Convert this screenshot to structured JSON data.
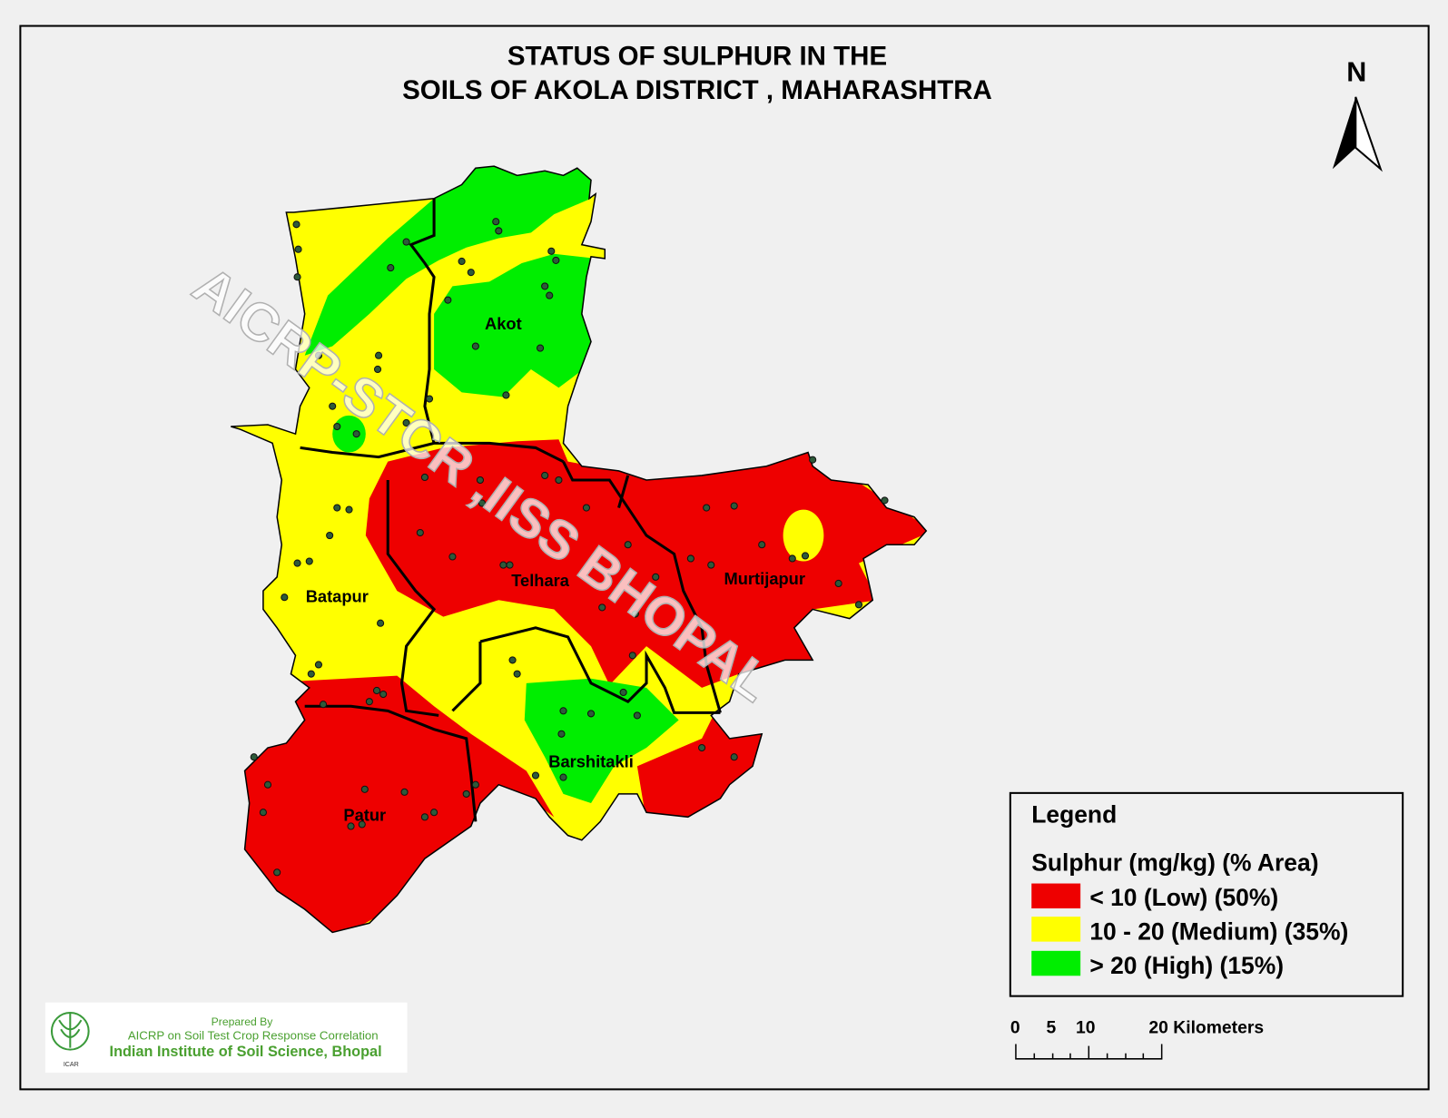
{
  "title": {
    "line1": "STATUS OF SULPHUR  IN THE",
    "line2": "SOILS OF AKOLA DISTRICT ,  MAHARASHTRA"
  },
  "north_arrow": {
    "label": "N"
  },
  "watermark": "AICRP-STCR ,IISS BHOPAL",
  "talukas": [
    {
      "name": "Akot"
    },
    {
      "name": "Telhara"
    },
    {
      "name": "Murtijapur"
    },
    {
      "name": "Batapur"
    },
    {
      "name": "Barshitakli"
    },
    {
      "name": "Patur"
    }
  ],
  "legend": {
    "heading": "Legend",
    "subtitle": "Sulphur (mg/kg) (% Area)",
    "items": [
      {
        "label": "< 10 (Low) (50%)",
        "color": "#ee0000",
        "percent": 50
      },
      {
        "label": "10 - 20 (Medium) (35%)",
        "color": "#ffff00",
        "percent": 35
      },
      {
        "label": "> 20  (High) (15%)",
        "color": "#00ee00",
        "percent": 15
      }
    ]
  },
  "scale_bar": {
    "ticks": [
      "0",
      "5",
      "10",
      "20 Kilometers"
    ]
  },
  "credit": {
    "logo_text": "ICAR",
    "line1": "Prepared By",
    "line2": "AICRP on Soil Test Crop Response Correlation",
    "line3": "Indian Institute of Soil Science, Bhopal"
  },
  "colors": {
    "low": "#ee0000",
    "medium": "#ffff00",
    "high": "#00ee00",
    "sample_point": "#2e5a3a"
  }
}
